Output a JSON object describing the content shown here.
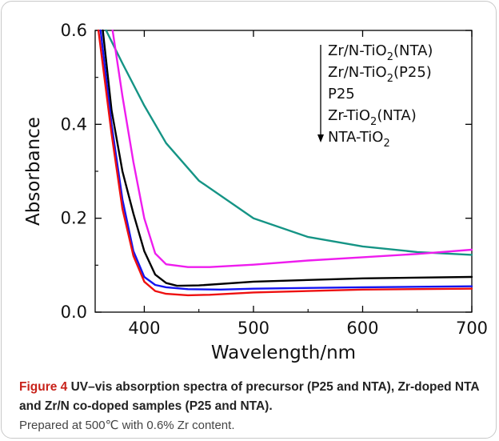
{
  "caption": {
    "label": "Figure 4",
    "title": "UV–vis absorption spectra of precursor (P25 and NTA), Zr-doped NTA and Zr/N co-doped samples (P25 and NTA).",
    "note": "Prepared at 500℃ with 0.6% Zr content."
  },
  "chart_data": {
    "type": "line",
    "title": "",
    "xlabel": "Wavelength/nm",
    "ylabel": "Absorbance",
    "xlim": [
      355,
      700
    ],
    "ylim": [
      0,
      0.6
    ],
    "xticks": [
      400,
      500,
      600,
      700
    ],
    "yticks": [
      0.0,
      0.2,
      0.4,
      0.6
    ],
    "xtick_labels": [
      "400",
      "500",
      "600",
      "700"
    ],
    "ytick_labels": [
      "0.0",
      "0.2",
      "0.4",
      "0.6"
    ],
    "grid": false,
    "legend": {
      "placement": "top-right",
      "arrow": "down",
      "entries": [
        {
          "base": "Zr/N-TiO",
          "sub": "2",
          "tail": "(NTA)"
        },
        {
          "base": "Zr/N-TiO",
          "sub": "2",
          "tail": "(P25)"
        },
        {
          "base": "P25",
          "sub": "",
          "tail": ""
        },
        {
          "base": "Zr-TiO",
          "sub": "2",
          "tail": "(NTA)"
        },
        {
          "base": "NTA-TiO",
          "sub": "2",
          "tail": ""
        }
      ]
    },
    "series": [
      {
        "color": "#159485",
        "x": [
          365,
          380,
          400,
          420,
          450,
          500,
          550,
          600,
          650,
          700
        ],
        "y": [
          0.6,
          0.53,
          0.44,
          0.36,
          0.28,
          0.2,
          0.16,
          0.14,
          0.128,
          0.122
        ]
      },
      {
        "color": "#ee1cee",
        "x": [
          371,
          380,
          390,
          400,
          410,
          420,
          440,
          460,
          500,
          550,
          600,
          650,
          700
        ],
        "y": [
          0.6,
          0.46,
          0.32,
          0.2,
          0.125,
          0.102,
          0.096,
          0.096,
          0.101,
          0.11,
          0.117,
          0.124,
          0.133
        ]
      },
      {
        "color": "#000000",
        "x": [
          362,
          370,
          380,
          390,
          400,
          410,
          420,
          430,
          450,
          500,
          600,
          700
        ],
        "y": [
          0.6,
          0.43,
          0.3,
          0.21,
          0.13,
          0.08,
          0.062,
          0.056,
          0.057,
          0.065,
          0.072,
          0.075
        ]
      },
      {
        "color": "#1414f0",
        "x": [
          360,
          370,
          380,
          390,
          400,
          410,
          420,
          440,
          470,
          500,
          600,
          700
        ],
        "y": [
          0.6,
          0.4,
          0.24,
          0.13,
          0.075,
          0.058,
          0.053,
          0.049,
          0.048,
          0.05,
          0.053,
          0.055
        ]
      },
      {
        "color": "#ee1010",
        "x": [
          358,
          370,
          380,
          390,
          400,
          410,
          420,
          440,
          460,
          500,
          600,
          700
        ],
        "y": [
          0.6,
          0.38,
          0.22,
          0.12,
          0.065,
          0.045,
          0.039,
          0.036,
          0.037,
          0.042,
          0.048,
          0.05
        ]
      }
    ]
  }
}
